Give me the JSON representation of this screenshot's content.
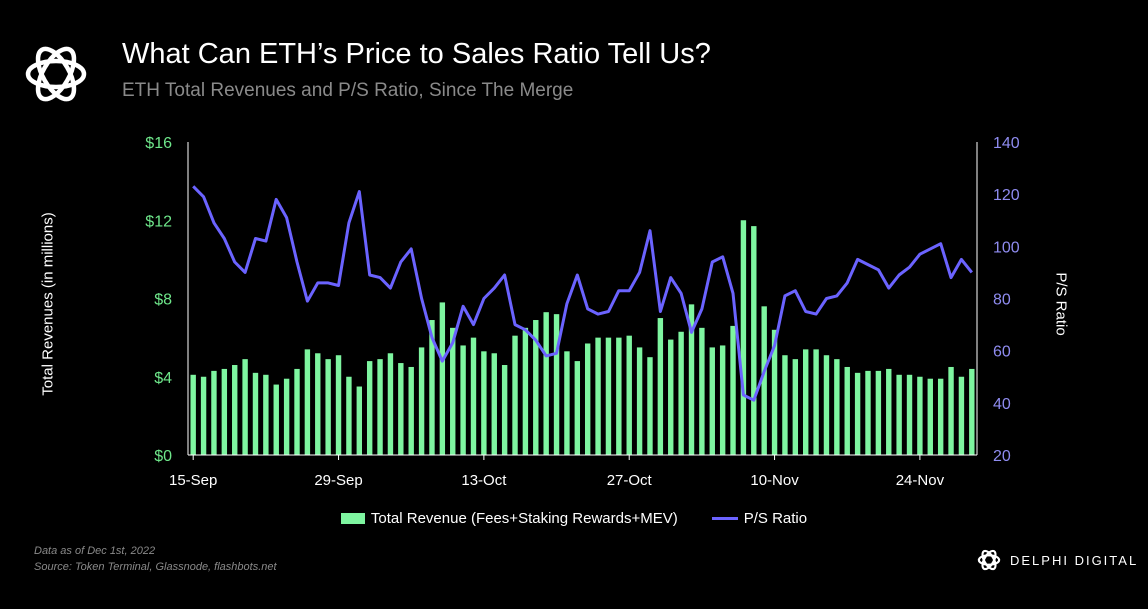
{
  "header": {
    "title": "What Can ETH’s Price to Sales Ratio Tell Us?",
    "subtitle": "ETH Total Revenues and P/S Ratio, Since The Merge"
  },
  "footer": {
    "note": "Data as of Dec 1st, 2022",
    "source": "Source: Token Terminal, Glassnode, flashbots.net",
    "brand": "DELPHI DIGITAL"
  },
  "colors": {
    "bar": "#7ef5a0",
    "line": "#6b63ff",
    "left_axis": "#6ee68a",
    "right_axis": "#8f8cf0",
    "axis": "#ffffff"
  },
  "chart_data": {
    "type": "bar+line",
    "x_tick_labels": [
      "15-Sep",
      "29-Sep",
      "13-Oct",
      "27-Oct",
      "10-Nov",
      "24-Nov"
    ],
    "x_tick_index": [
      0,
      14,
      28,
      42,
      56,
      70
    ],
    "ylabel_left": "Total Revenues (in millions)",
    "ylabel_right": "P/S Ratio",
    "ylim_left": [
      0,
      16
    ],
    "ylim_right": [
      20,
      140
    ],
    "y_ticks_left": [
      "$0",
      "$4",
      "$8",
      "$12",
      "$16"
    ],
    "y_tick_values_left": [
      0,
      4,
      8,
      12,
      16
    ],
    "y_ticks_right": [
      "20",
      "40",
      "60",
      "80",
      "100",
      "120",
      "140"
    ],
    "y_tick_values_right": [
      20,
      40,
      60,
      80,
      100,
      120,
      140
    ],
    "legend_position": "bottom",
    "series": [
      {
        "name": "Total Revenue (Fees+Staking Rewards+MEV)",
        "kind": "bar",
        "axis": "left",
        "values": [
          4.1,
          4.0,
          4.3,
          4.4,
          4.6,
          4.9,
          4.2,
          4.1,
          3.6,
          3.9,
          4.4,
          5.4,
          5.2,
          4.9,
          5.1,
          4.0,
          3.5,
          4.8,
          4.9,
          5.2,
          4.7,
          4.5,
          5.5,
          6.9,
          7.8,
          6.5,
          5.6,
          6.0,
          5.3,
          5.2,
          4.6,
          6.1,
          6.5,
          6.9,
          7.3,
          7.2,
          5.3,
          4.8,
          5.7,
          6.0,
          6.0,
          6.0,
          6.1,
          5.5,
          5.0,
          7.0,
          5.9,
          6.3,
          7.7,
          6.5,
          5.5,
          5.6,
          6.6,
          12.0,
          11.7,
          7.6,
          6.4,
          5.1,
          4.9,
          5.4,
          5.4,
          5.1,
          4.9,
          4.5,
          4.2,
          4.3,
          4.3,
          4.4,
          4.1,
          4.1,
          4.0,
          3.9,
          3.9,
          4.5,
          4.0,
          4.4
        ]
      },
      {
        "name": "P/S Ratio",
        "kind": "line",
        "axis": "right",
        "values": [
          123,
          119,
          109,
          103,
          94,
          90,
          103,
          102,
          118,
          111,
          94,
          79,
          86,
          86,
          85,
          109,
          121,
          89,
          88,
          84,
          94,
          99,
          80,
          65,
          56,
          63,
          77,
          70,
          80,
          84,
          89,
          70,
          68,
          64,
          58,
          59,
          78,
          89,
          76,
          74,
          75,
          83,
          83,
          90,
          106,
          75,
          88,
          82,
          67,
          76,
          94,
          96,
          82,
          43,
          41,
          52,
          62,
          81,
          83,
          75,
          74,
          80,
          81,
          86,
          95,
          93,
          91,
          84,
          89,
          92,
          97,
          99,
          101,
          88,
          95,
          90
        ]
      }
    ]
  }
}
